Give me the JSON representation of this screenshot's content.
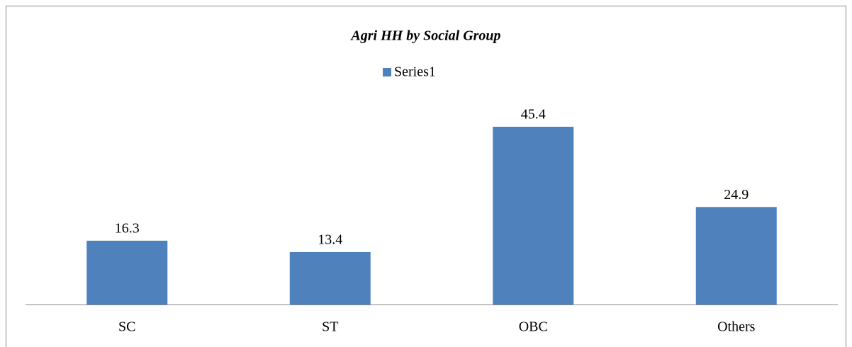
{
  "chart_data": {
    "type": "bar",
    "title": "Agri HH by Social Group",
    "categories": [
      "SC",
      "ST",
      "OBC",
      "Others"
    ],
    "series": [
      {
        "name": "Series1",
        "color": "#4f81bd",
        "values": [
          16.3,
          13.4,
          45.4,
          24.9
        ]
      }
    ]
  }
}
